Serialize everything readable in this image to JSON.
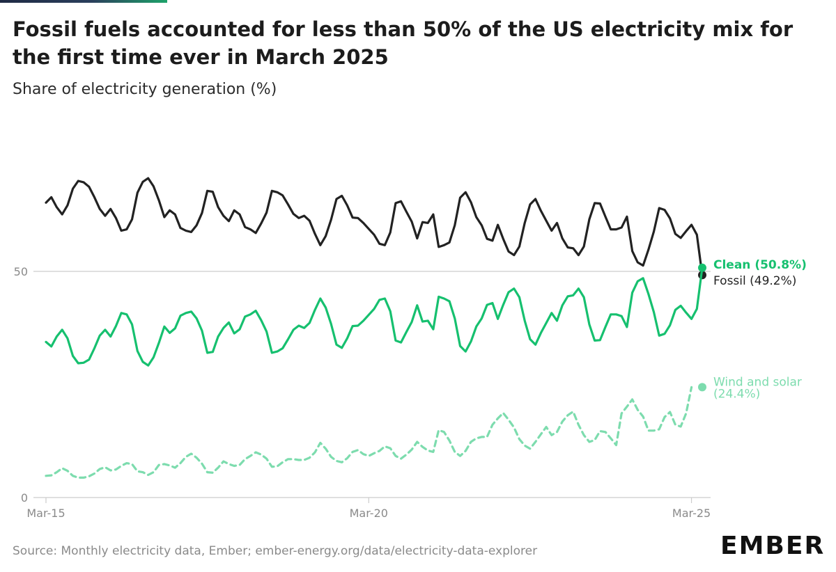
{
  "header": {
    "title": "Fossil fuels accounted for less than 50% of the US electricity mix for the first time ever in March 2025",
    "subtitle": "Share of electricity generation (%)"
  },
  "footer": {
    "source": "Source: Monthly electricity data, Ember; ember-energy.org/data/electricity-data-explorer",
    "logo": "EMBER"
  },
  "colors": {
    "fossil": "#222222",
    "clean": "#16c06f",
    "wind_solar": "#7ddcae",
    "grid": "#cccccc",
    "axis_text": "#8a8a8a"
  },
  "chart_data": {
    "type": "line",
    "title": "Fossil fuels accounted for less than 50% of the US electricity mix for the first time ever in March 2025",
    "subtitle": "Share of electricity generation (%)",
    "x_ticks": [
      "Mar-15",
      "Mar-20",
      "Mar-25"
    ],
    "y_ticks": [
      0,
      50
    ],
    "ylim": [
      0,
      80
    ],
    "x_start": "Mar-15",
    "x_end": "Mar-25",
    "gridlines": [
      50
    ],
    "series": [
      {
        "name": "Fossil",
        "label": "Fossil (49.2%)",
        "final_value": 49.2,
        "style": "solid",
        "values": [
          65.2,
          66.4,
          64.2,
          62.6,
          64.6,
          68.3,
          70.0,
          69.7,
          68.7,
          66.4,
          63.8,
          62.3,
          63.8,
          61.8,
          59.0,
          59.3,
          61.5,
          67.4,
          69.8,
          70.6,
          68.8,
          65.7,
          62.0,
          63.5,
          62.6,
          59.6,
          59.0,
          58.7,
          60.2,
          62.9,
          67.8,
          67.6,
          64.2,
          62.3,
          61.1,
          63.5,
          62.6,
          59.8,
          59.3,
          58.5,
          60.6,
          63.0,
          67.8,
          67.5,
          66.8,
          64.8,
          62.7,
          61.8,
          62.3,
          61.2,
          58.3,
          55.8,
          57.8,
          61.4,
          66.0,
          66.7,
          64.6,
          61.9,
          61.8,
          60.7,
          59.4,
          58.1,
          56.1,
          55.8,
          58.6,
          65.1,
          65.5,
          63.2,
          61.0,
          57.3,
          60.9,
          60.7,
          62.6,
          55.4,
          55.8,
          56.4,
          60.2,
          66.3,
          67.5,
          65.3,
          62.0,
          60.2,
          57.2,
          56.8,
          60.3,
          57.2,
          54.4,
          53.6,
          55.5,
          60.7,
          64.8,
          66.0,
          63.4,
          61.2,
          59.0,
          60.7,
          57.3,
          55.3,
          55.1,
          53.6,
          55.5,
          61.5,
          65.1,
          65.0,
          62.1,
          59.3,
          59.3,
          59.7,
          62.1,
          54.5,
          52.0,
          51.3,
          54.8,
          58.8,
          64.0,
          63.6,
          61.7,
          58.3,
          57.4,
          58.9,
          60.3,
          58.1,
          49.2
        ]
      },
      {
        "name": "Clean",
        "label": "Clean (50.8%)",
        "final_value": 50.8,
        "style": "solid",
        "values": [
          34.4,
          33.4,
          35.6,
          37.1,
          35.2,
          31.3,
          29.7,
          29.8,
          30.5,
          33.0,
          35.8,
          37.1,
          35.6,
          37.9,
          40.8,
          40.5,
          38.3,
          32.4,
          30.0,
          29.2,
          31.0,
          34.2,
          37.8,
          36.4,
          37.4,
          40.2,
          40.8,
          41.1,
          39.6,
          36.9,
          32.0,
          32.2,
          35.6,
          37.5,
          38.7,
          36.3,
          37.2,
          40.0,
          40.5,
          41.3,
          39.2,
          36.7,
          32.0,
          32.3,
          33.0,
          35.0,
          37.1,
          38.0,
          37.5,
          38.6,
          41.5,
          44.0,
          42.0,
          38.4,
          33.8,
          33.1,
          35.2,
          37.9,
          38.0,
          39.1,
          40.4,
          41.7,
          43.7,
          44.0,
          41.2,
          34.7,
          34.3,
          36.6,
          38.8,
          42.5,
          38.9,
          39.1,
          37.2,
          44.4,
          44.0,
          43.4,
          39.6,
          33.5,
          32.3,
          34.5,
          37.8,
          39.6,
          42.6,
          43.0,
          39.5,
          42.6,
          45.4,
          46.2,
          44.3,
          39.1,
          35.0,
          33.8,
          36.4,
          38.6,
          40.8,
          39.1,
          42.5,
          44.5,
          44.7,
          46.2,
          44.3,
          38.3,
          34.7,
          34.8,
          37.7,
          40.5,
          40.5,
          40.1,
          37.7,
          45.3,
          47.8,
          48.5,
          45.0,
          41.0,
          35.8,
          36.2,
          38.1,
          41.5,
          42.4,
          40.9,
          39.5,
          41.7,
          50.8
        ]
      },
      {
        "name": "Wind and solar",
        "label": "Wind and solar (24.4%)",
        "final_value": 24.4,
        "style": "dashed",
        "values": [
          4.8,
          4.9,
          5.6,
          6.5,
          5.9,
          4.8,
          4.4,
          4.4,
          4.7,
          5.3,
          6.3,
          6.7,
          6.0,
          6.2,
          7.0,
          7.6,
          7.4,
          5.8,
          5.6,
          5.0,
          5.6,
          7.2,
          7.4,
          7.1,
          6.6,
          7.6,
          9.0,
          9.7,
          8.8,
          7.5,
          5.6,
          5.5,
          6.6,
          8.0,
          7.4,
          7.0,
          7.2,
          8.5,
          9.2,
          10.0,
          9.5,
          8.6,
          6.8,
          6.9,
          7.8,
          8.5,
          8.5,
          8.3,
          8.3,
          8.8,
          10.0,
          12.1,
          10.8,
          9.0,
          8.1,
          7.8,
          8.7,
          10.1,
          10.5,
          9.6,
          9.2,
          9.8,
          10.3,
          11.3,
          10.9,
          9.2,
          8.6,
          9.5,
          10.6,
          12.3,
          11.2,
          10.4,
          10.1,
          14.9,
          14.5,
          12.6,
          10.1,
          9.2,
          10.3,
          12.3,
          13.1,
          13.4,
          13.4,
          16.1,
          17.5,
          18.7,
          17.2,
          15.5,
          12.9,
          11.5,
          10.8,
          12.3,
          14.0,
          15.6,
          13.8,
          14.5,
          16.8,
          18.2,
          19.0,
          16.1,
          13.8,
          12.3,
          12.7,
          14.7,
          14.5,
          13.1,
          11.6,
          18.6,
          20.1,
          21.7,
          19.4,
          17.9,
          14.8,
          14.8,
          15.1,
          17.8,
          18.9,
          16.1,
          15.7,
          18.6,
          24.4
        ]
      }
    ]
  }
}
